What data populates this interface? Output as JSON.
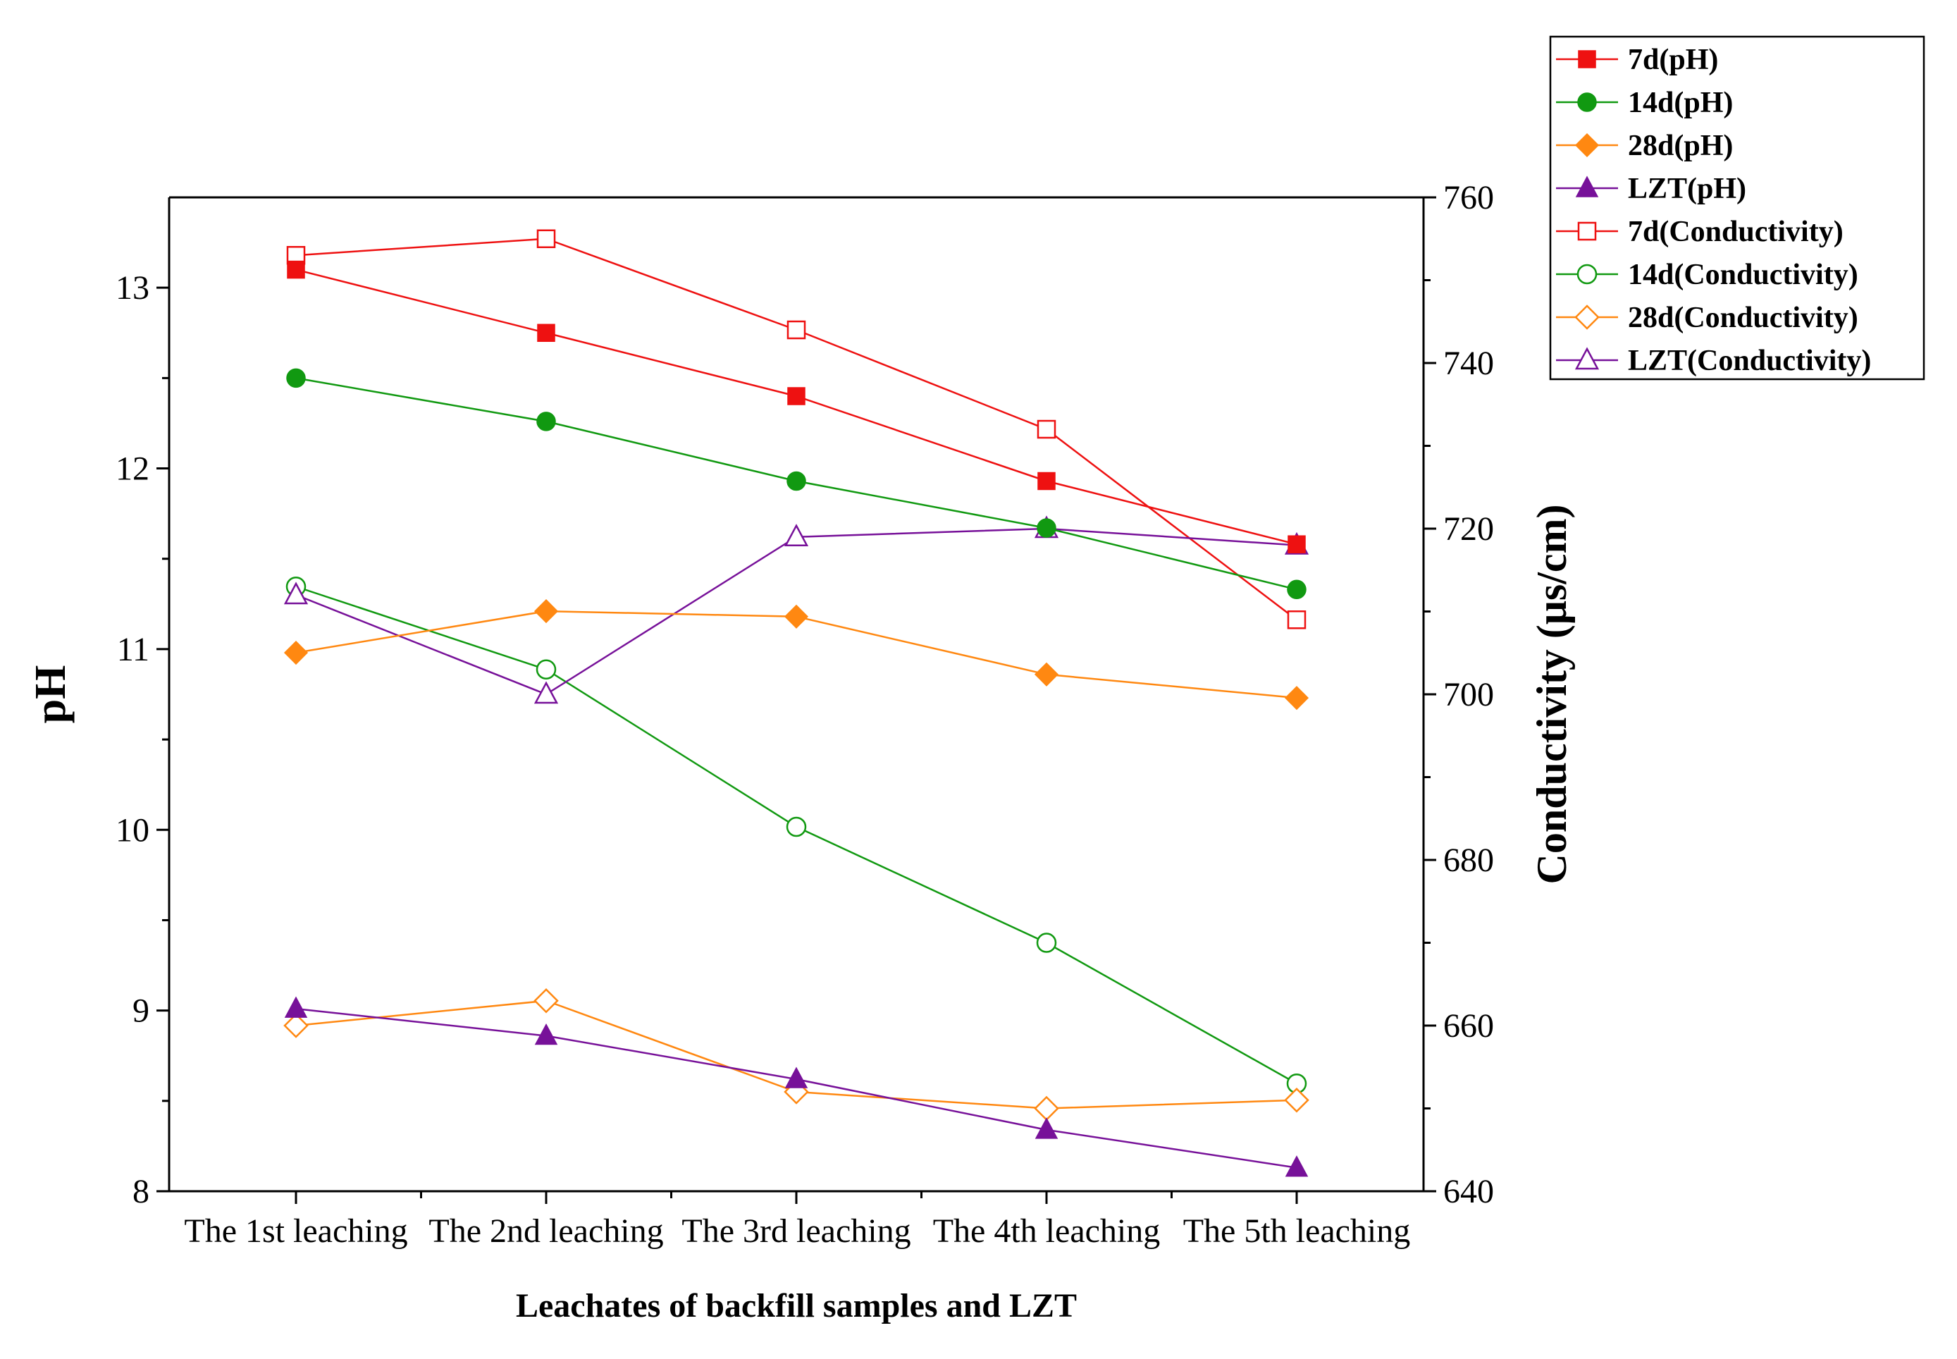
{
  "chart_data": {
    "type": "line",
    "title": "",
    "categories": [
      "The 1st leaching",
      "The 2nd leaching",
      "The 3rd leaching",
      "The 4th leaching",
      "The 5th leaching"
    ],
    "xlabel": "Leachates of backfill samples and LZT",
    "ylabel": "pH",
    "y2label": "Conductivity (μs/cm)",
    "ylim": [
      8,
      13.5
    ],
    "y2lim": [
      640,
      760
    ],
    "yticks": [
      8,
      9,
      10,
      11,
      12,
      13
    ],
    "y2ticks": [
      640,
      660,
      680,
      700,
      720,
      740,
      760
    ],
    "legend_position": "top-right",
    "series": [
      {
        "name": "7d(pH)",
        "axis": "left",
        "color": "#ee1111",
        "marker": "square",
        "filled": true,
        "values": [
          13.1,
          12.75,
          12.4,
          11.93,
          11.58
        ]
      },
      {
        "name": "14d(pH)",
        "axis": "left",
        "color": "#119911",
        "marker": "circle",
        "filled": true,
        "values": [
          12.5,
          12.26,
          11.93,
          11.67,
          11.33
        ]
      },
      {
        "name": "28d(pH)",
        "axis": "left",
        "color": "#ff8811",
        "marker": "diamond",
        "filled": true,
        "values": [
          10.98,
          11.21,
          11.18,
          10.86,
          10.73
        ]
      },
      {
        "name": "LZT(pH)",
        "axis": "left",
        "color": "#771199",
        "marker": "triangle",
        "filled": true,
        "values": [
          9.01,
          8.86,
          8.62,
          8.34,
          8.13
        ]
      },
      {
        "name": "7d(Conductivity)",
        "axis": "right",
        "color": "#ee1111",
        "marker": "square",
        "filled": false,
        "values": [
          753,
          755,
          744,
          732,
          709
        ]
      },
      {
        "name": "14d(Conductivity)",
        "axis": "right",
        "color": "#119911",
        "marker": "circle",
        "filled": false,
        "values": [
          713,
          703,
          684,
          670,
          653
        ]
      },
      {
        "name": "28d(Conductivity)",
        "axis": "right",
        "color": "#ff8811",
        "marker": "diamond",
        "filled": false,
        "values": [
          660,
          663,
          652,
          650,
          651
        ]
      },
      {
        "name": "LZT(Conductivity)",
        "axis": "right",
        "color": "#771199",
        "marker": "triangle",
        "filled": false,
        "values": [
          712,
          700,
          719,
          720,
          718
        ]
      }
    ]
  }
}
